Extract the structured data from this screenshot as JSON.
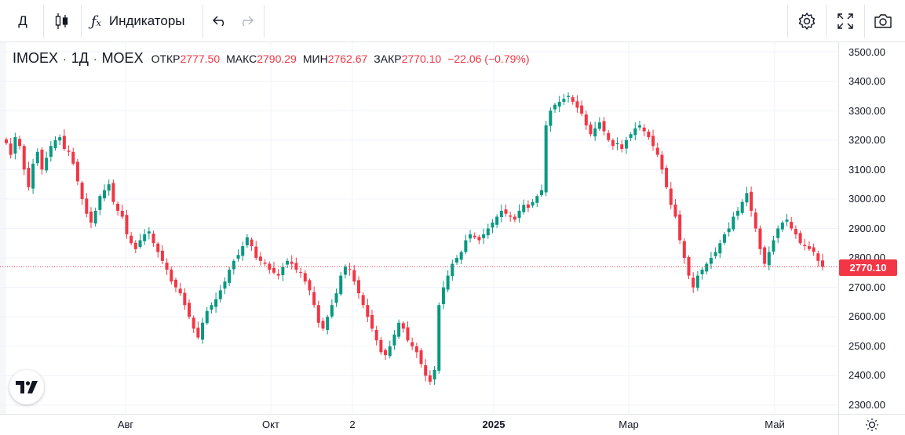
{
  "toolbar": {
    "interval_label": "Д",
    "indicators_label": "Индикаторы",
    "fx_icon": "fx-icon"
  },
  "legend": {
    "symbol": "IMOEX",
    "interval": "1Д",
    "exchange": "MOEX",
    "open_label": "ОТКР",
    "open_value": "2777.50",
    "high_label": "МАКС",
    "high_value": "2790.29",
    "low_label": "МИН",
    "low_value": "2762.67",
    "close_label": "ЗАКР",
    "close_value": "2770.10",
    "change": "−22.06 (−0.79%)"
  },
  "price_axis": {
    "labels": [
      "3500.00",
      "3400.00",
      "3300.00",
      "3200.00",
      "3100.00",
      "3000.00",
      "2900.00",
      "2800.00",
      "2700.00",
      "2600.00",
      "2500.00",
      "2400.00",
      "2300.00"
    ],
    "last_price": "2770.10"
  },
  "time_axis": {
    "labels": [
      {
        "text": "Авг",
        "bold": false
      },
      {
        "text": "Окт",
        "bold": false
      },
      {
        "text": "2",
        "bold": false
      },
      {
        "text": "2025",
        "bold": true
      },
      {
        "text": "Мар",
        "bold": false
      },
      {
        "text": "Май",
        "bold": false
      }
    ]
  },
  "colors": {
    "up": "#089981",
    "down": "#f23645",
    "grid": "#f0f3fa",
    "last_price_line": "#f23645"
  },
  "chart_data": {
    "type": "candlestick",
    "symbol": "IMOEX",
    "ylim": [
      2300,
      3500
    ],
    "closes": [
      3190,
      3150,
      3210,
      3180,
      3100,
      3040,
      3120,
      3160,
      3100,
      3140,
      3180,
      3200,
      3210,
      3170,
      3160,
      3120,
      3060,
      3000,
      2950,
      2920,
      2960,
      3010,
      3030,
      3050,
      2990,
      2960,
      2940,
      2880,
      2850,
      2830,
      2860,
      2880,
      2890,
      2850,
      2820,
      2790,
      2760,
      2720,
      2700,
      2680,
      2640,
      2600,
      2560,
      2530,
      2580,
      2620,
      2640,
      2660,
      2690,
      2720,
      2760,
      2790,
      2810,
      2840,
      2870,
      2840,
      2800,
      2790,
      2780,
      2760,
      2750,
      2740,
      2770,
      2790,
      2780,
      2760,
      2750,
      2720,
      2690,
      2640,
      2580,
      2560,
      2600,
      2640,
      2680,
      2740,
      2770,
      2760,
      2720,
      2680,
      2640,
      2600,
      2560,
      2520,
      2480,
      2470,
      2500,
      2540,
      2580,
      2560,
      2520,
      2500,
      2480,
      2440,
      2400,
      2380,
      2420,
      2640,
      2700,
      2740,
      2780,
      2800,
      2820,
      2860,
      2880,
      2870,
      2860,
      2880,
      2900,
      2920,
      2940,
      2960,
      2950,
      2940,
      2930,
      2960,
      2980,
      2970,
      2990,
      3010,
      3030,
      3250,
      3300,
      3320,
      3330,
      3340,
      3350,
      3330,
      3310,
      3290,
      3250,
      3220,
      3240,
      3260,
      3230,
      3200,
      3180,
      3190,
      3170,
      3200,
      3220,
      3240,
      3250,
      3230,
      3210,
      3180,
      3150,
      3100,
      3040,
      2980,
      2940,
      2860,
      2800,
      2740,
      2700,
      2740,
      2760,
      2780,
      2800,
      2820,
      2850,
      2880,
      2900,
      2940,
      2960,
      2990,
      3020,
      2960,
      2900,
      2830,
      2780,
      2820,
      2860,
      2900,
      2920,
      2930,
      2900,
      2880,
      2850,
      2840,
      2830,
      2820,
      2790,
      2770
    ]
  }
}
